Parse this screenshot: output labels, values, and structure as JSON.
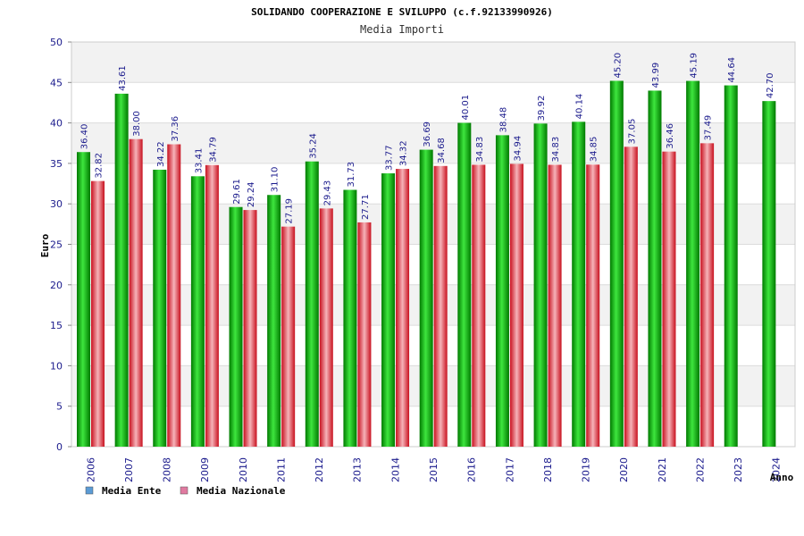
{
  "chart_data": {
    "type": "bar",
    "title": "SOLIDANDO COOPERAZIONE E SVILUPPO (c.f.92133990926)",
    "subtitle": "Media Importi",
    "xlabel": "Anno",
    "ylabel": "Euro",
    "ylim": [
      0,
      50
    ],
    "yticks": [
      "0",
      "5",
      "10",
      "15",
      "20",
      "25",
      "30",
      "35",
      "40",
      "45",
      "50"
    ],
    "categories": [
      "2006",
      "2007",
      "2008",
      "2009",
      "2010",
      "2011",
      "2012",
      "2013",
      "2014",
      "2015",
      "2016",
      "2017",
      "2018",
      "2019",
      "2020",
      "2021",
      "2022",
      "2023",
      "2024"
    ],
    "series": [
      {
        "name": "Media Ente",
        "values": [
          36.4,
          43.61,
          34.22,
          33.41,
          29.61,
          31.1,
          35.24,
          31.73,
          33.77,
          36.69,
          40.01,
          38.48,
          39.92,
          40.14,
          45.2,
          43.99,
          45.19,
          44.64,
          42.7
        ],
        "labels": [
          "36.40",
          "43.61",
          "34.22",
          "33.41",
          "29.61",
          "31.10",
          "35.24",
          "31.73",
          "33.77",
          "36.69",
          "40.01",
          "38.48",
          "39.92",
          "40.14",
          "45.20",
          "43.99",
          "45.19",
          "44.64",
          "42.70"
        ]
      },
      {
        "name": "Media Nazionale",
        "values": [
          32.82,
          38.0,
          37.36,
          34.79,
          29.24,
          27.19,
          29.43,
          27.71,
          34.32,
          34.68,
          34.83,
          34.94,
          34.83,
          34.85,
          37.05,
          36.46,
          37.49,
          null,
          null
        ],
        "labels": [
          "32.82",
          "38.00",
          "37.36",
          "34.79",
          "29.24",
          "27.19",
          "29.43",
          "27.71",
          "34.32",
          "34.68",
          "34.83",
          "34.94",
          "34.83",
          "34.85",
          "37.05",
          "36.46",
          "37.49",
          null,
          null
        ]
      }
    ],
    "legend": [
      {
        "label": "Media Ente",
        "color": "#5b9bd5"
      },
      {
        "label": "Media Nazionale",
        "color": "#e07aa0"
      }
    ],
    "colors": {
      "ente_dark": "#008a00",
      "ente_light": "#33e033",
      "naz_dark": "#d42030",
      "naz_light": "#f4a0a8",
      "band": "#f2f2f2",
      "grid": "#dcdcdc"
    },
    "grid": true,
    "legend_position": "bottom-left"
  }
}
